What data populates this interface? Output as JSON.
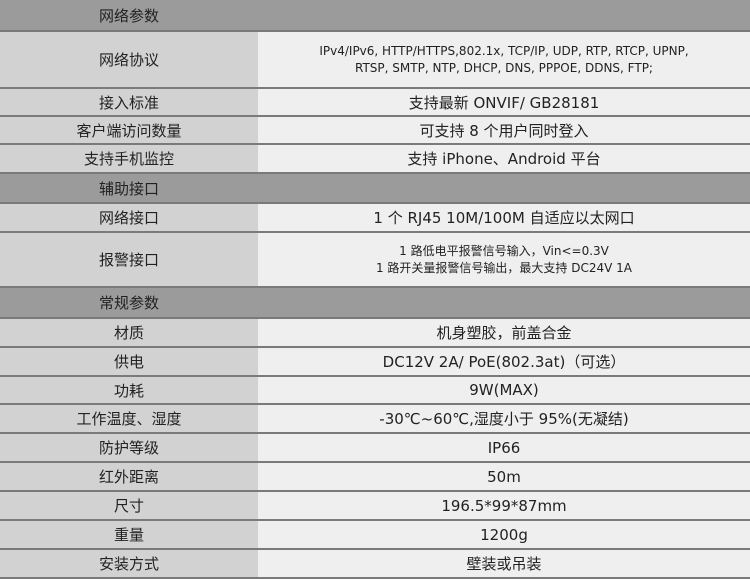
{
  "sections": [
    {
      "title": "网络参数",
      "rows": [
        {
          "label": "网络协议",
          "lines": [
            "IPv4/IPv6, HTTP/HTTPS,802.1x, TCP/IP, UDP, RTP, RTCP, UPNP,",
            "RTSP, SMTP, NTP, DHCP, DNS, PPPOE, DDNS, FTP;"
          ],
          "small": true,
          "h": 57
        },
        {
          "label": "接入标准",
          "lines": [
            "支持最新 ONVIF/ GB28181"
          ],
          "h": 28
        },
        {
          "label": "客户端访问数量",
          "lines": [
            "可支持 8 个用户同时登入"
          ],
          "h": 28
        },
        {
          "label": "支持手机监控",
          "lines": [
            "支持 iPhone、Android 平台"
          ],
          "h": 29
        }
      ]
    },
    {
      "title": "辅助接口",
      "rows": [
        {
          "label": "网络接口",
          "lines": [
            "1 个 RJ45 10M/100M 自适应以太网口"
          ],
          "h": 29
        },
        {
          "label": "报警接口",
          "lines": [
            "1 路低电平报警信号输入，Vin<=0.3V",
            "1 路开关量报警信号输出，最大支持 DC24V 1A"
          ],
          "small": true,
          "h": 55
        }
      ]
    },
    {
      "title": "常规参数",
      "rows": [
        {
          "label": "材质",
          "lines": [
            "机身塑胶，前盖合金"
          ],
          "h": 29
        },
        {
          "label": "供电",
          "lines": [
            "DC12V 2A/ PoE(802.3at)（可选）"
          ],
          "h": 29
        },
        {
          "label": "功耗",
          "lines": [
            "9W(MAX)"
          ],
          "h": 28
        },
        {
          "label": "工作温度、湿度",
          "lines": [
            "-30℃~60℃,湿度小于 95%(无凝结)"
          ],
          "h": 29
        },
        {
          "label": "防护等级",
          "lines": [
            "IP66"
          ],
          "h": 29
        },
        {
          "label": "红外距离",
          "lines": [
            "50m"
          ],
          "h": 29
        },
        {
          "label": "尺寸",
          "lines": [
            "196.5*99*87mm"
          ],
          "h": 29
        },
        {
          "label": "重量",
          "lines": [
            "1200g"
          ],
          "h": 29
        },
        {
          "label": "安装方式",
          "lines": [
            "壁装或吊装"
          ],
          "h": 29
        }
      ]
    }
  ]
}
